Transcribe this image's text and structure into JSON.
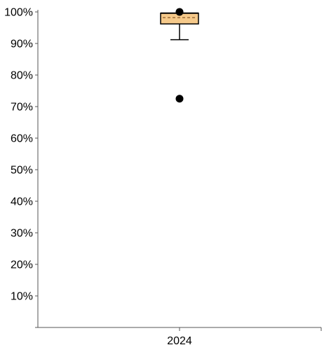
{
  "chart_data": {
    "type": "box",
    "categories": [
      "2024"
    ],
    "y_tick_labels": [
      "10%",
      "20%",
      "30%",
      "40%",
      "50%",
      "60%",
      "70%",
      "80%",
      "90%",
      "100%"
    ],
    "ylim": [
      0,
      100
    ],
    "unit": "%",
    "grid": false,
    "boxes": [
      {
        "category": "2024",
        "whisker_low": 91.2,
        "q1": 96.2,
        "median": 99.6,
        "mean": 98.2,
        "q3": 99.6,
        "whisker_high": 99.6,
        "outliers": [
          72.5,
          100
        ]
      }
    ],
    "colors": {
      "box_fill": "#F5C98A",
      "box_stroke": "#000000",
      "mean_line": "#8B5A2B",
      "outlier": "#000000",
      "axis": "#555555"
    }
  }
}
